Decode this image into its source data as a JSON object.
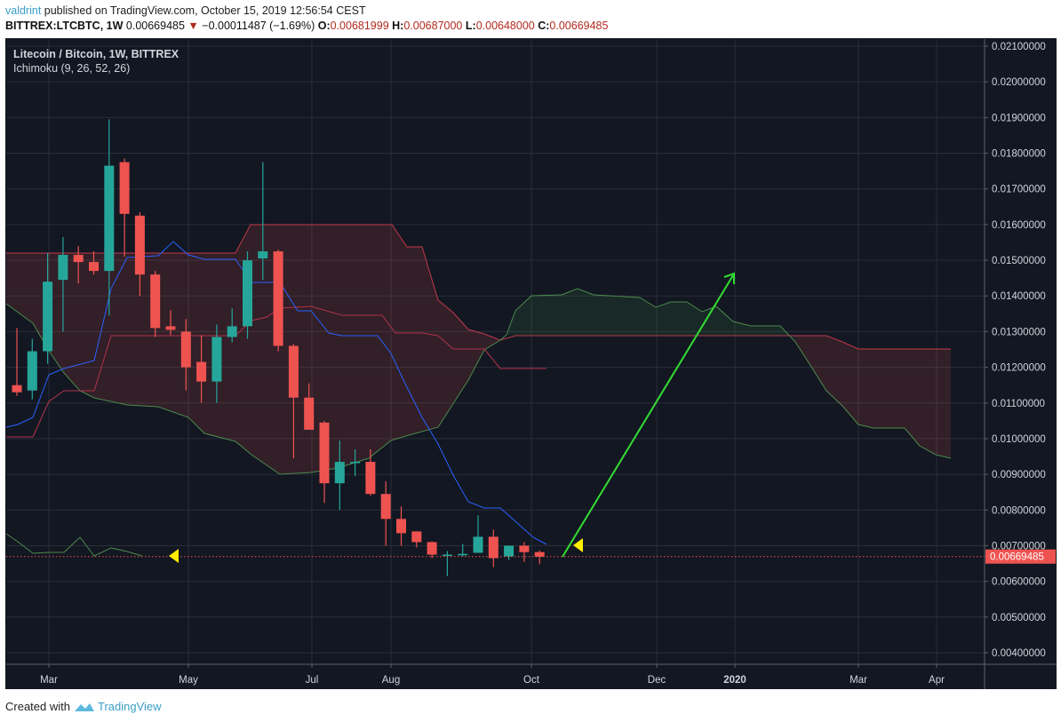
{
  "header": {
    "author": "valdrint",
    "published_text": " published on TradingView.com, October 15, 2019 12:56:54 CEST",
    "symbol": "BITTREX:LTCBTC, 1W",
    "last": "0.00669485",
    "change_arrow": "▼",
    "change": "−0.00011487 (−1.69%)",
    "o_label": "O:",
    "o": "0.00681999",
    "h_label": "H:",
    "h": "0.00687000",
    "l_label": "L:",
    "l": "0.00648000",
    "c_label": "C:",
    "c": "0.00669485"
  },
  "legend": {
    "title": "Litecoin / Bitcoin, 1W, BITTREX",
    "indicator": "Ichimoku (9, 26, 52, 26)"
  },
  "footer": {
    "created_with": "Created with",
    "brand": "TradingView"
  },
  "colors": {
    "background": "#131722",
    "up": "#26a69a",
    "down": "#ef5350",
    "tenkan": "#2962ff",
    "kijun": "#b2334a",
    "span_a": "#4c8a4c",
    "span_b": "#c0394a",
    "arrow": "#33dd33",
    "marker": "#ffee00",
    "price_line": "#ef5350"
  },
  "chart_data": {
    "type": "candlestick",
    "title": "Litecoin / Bitcoin, 1W, BITTREX",
    "indicator": "Ichimoku (9, 26, 52, 26)",
    "xlabel": "",
    "ylabel": "",
    "ylim": [
      0.0038,
      0.0212
    ],
    "y_ticks": [
      "0.02100000",
      "0.02000000",
      "0.01900000",
      "0.01800000",
      "0.01700000",
      "0.01600000",
      "0.01500000",
      "0.01400000",
      "0.01300000",
      "0.01200000",
      "0.01100000",
      "0.01000000",
      "0.00900000",
      "0.00800000",
      "0.00700000",
      "0.00600000",
      "0.00500000",
      "0.00400000"
    ],
    "x_ticks": [
      "Mar",
      "May",
      "Jul",
      "Aug",
      "Oct",
      "Dec",
      "2020",
      "Mar",
      "Apr"
    ],
    "current_price_label": "0.00669485",
    "candles": [
      {
        "o": 0.0115,
        "h": 0.0131,
        "l": 0.0112,
        "c": 0.0113
      },
      {
        "o": 0.01135,
        "h": 0.0128,
        "l": 0.0111,
        "c": 0.01245
      },
      {
        "o": 0.01245,
        "h": 0.0152,
        "l": 0.0121,
        "c": 0.0144
      },
      {
        "o": 0.01445,
        "h": 0.01565,
        "l": 0.013,
        "c": 0.01515
      },
      {
        "o": 0.01515,
        "h": 0.0154,
        "l": 0.01435,
        "c": 0.01495
      },
      {
        "o": 0.01495,
        "h": 0.01525,
        "l": 0.0146,
        "c": 0.0147
      },
      {
        "o": 0.0147,
        "h": 0.01895,
        "l": 0.01345,
        "c": 0.01765
      },
      {
        "o": 0.01775,
        "h": 0.01785,
        "l": 0.0151,
        "c": 0.0163
      },
      {
        "o": 0.01625,
        "h": 0.01635,
        "l": 0.014,
        "c": 0.0146
      },
      {
        "o": 0.0146,
        "h": 0.0147,
        "l": 0.01285,
        "c": 0.0131
      },
      {
        "o": 0.01315,
        "h": 0.0136,
        "l": 0.0129,
        "c": 0.01305
      },
      {
        "o": 0.013,
        "h": 0.01335,
        "l": 0.01135,
        "c": 0.012
      },
      {
        "o": 0.01215,
        "h": 0.0129,
        "l": 0.011,
        "c": 0.0116
      },
      {
        "o": 0.0116,
        "h": 0.0132,
        "l": 0.011,
        "c": 0.01285
      },
      {
        "o": 0.01285,
        "h": 0.01365,
        "l": 0.0127,
        "c": 0.01315
      },
      {
        "o": 0.01315,
        "h": 0.01525,
        "l": 0.0128,
        "c": 0.015
      },
      {
        "o": 0.01505,
        "h": 0.01775,
        "l": 0.01445,
        "c": 0.01525
      },
      {
        "o": 0.01525,
        "h": 0.0153,
        "l": 0.01245,
        "c": 0.0126
      },
      {
        "o": 0.0126,
        "h": 0.01265,
        "l": 0.00945,
        "c": 0.01115
      },
      {
        "o": 0.01115,
        "h": 0.01155,
        "l": 0.0104,
        "c": 0.01025
      },
      {
        "o": 0.01045,
        "h": 0.0105,
        "l": 0.0082,
        "c": 0.00875
      },
      {
        "o": 0.00875,
        "h": 0.00995,
        "l": 0.008,
        "c": 0.00935
      },
      {
        "o": 0.00935,
        "h": 0.0097,
        "l": 0.00895,
        "c": 0.00935
      },
      {
        "o": 0.00935,
        "h": 0.0097,
        "l": 0.0084,
        "c": 0.00845
      },
      {
        "o": 0.00845,
        "h": 0.0088,
        "l": 0.007,
        "c": 0.00775
      },
      {
        "o": 0.00775,
        "h": 0.0081,
        "l": 0.007,
        "c": 0.00735
      },
      {
        "o": 0.0074,
        "h": 0.0074,
        "l": 0.00695,
        "c": 0.0071
      },
      {
        "o": 0.0071,
        "h": 0.00712,
        "l": 0.00665,
        "c": 0.00675
      },
      {
        "o": 0.00675,
        "h": 0.00685,
        "l": 0.00615,
        "c": 0.00675
      },
      {
        "o": 0.00673,
        "h": 0.00705,
        "l": 0.0067,
        "c": 0.00677
      },
      {
        "o": 0.0068,
        "h": 0.00785,
        "l": 0.0068,
        "c": 0.00725
      },
      {
        "o": 0.00725,
        "h": 0.00745,
        "l": 0.0064,
        "c": 0.00665
      },
      {
        "o": 0.0067,
        "h": 0.007,
        "l": 0.0066,
        "c": 0.007
      },
      {
        "o": 0.007,
        "h": 0.0071,
        "l": 0.00655,
        "c": 0.00682
      },
      {
        "o": 0.00682,
        "h": 0.00687,
        "l": 0.00648,
        "c": 0.00669
      }
    ],
    "annotation": "Green upward arrow from ~0.0067 (mid-Oct 2019) to ~0.0146 (Jan 2020)"
  }
}
